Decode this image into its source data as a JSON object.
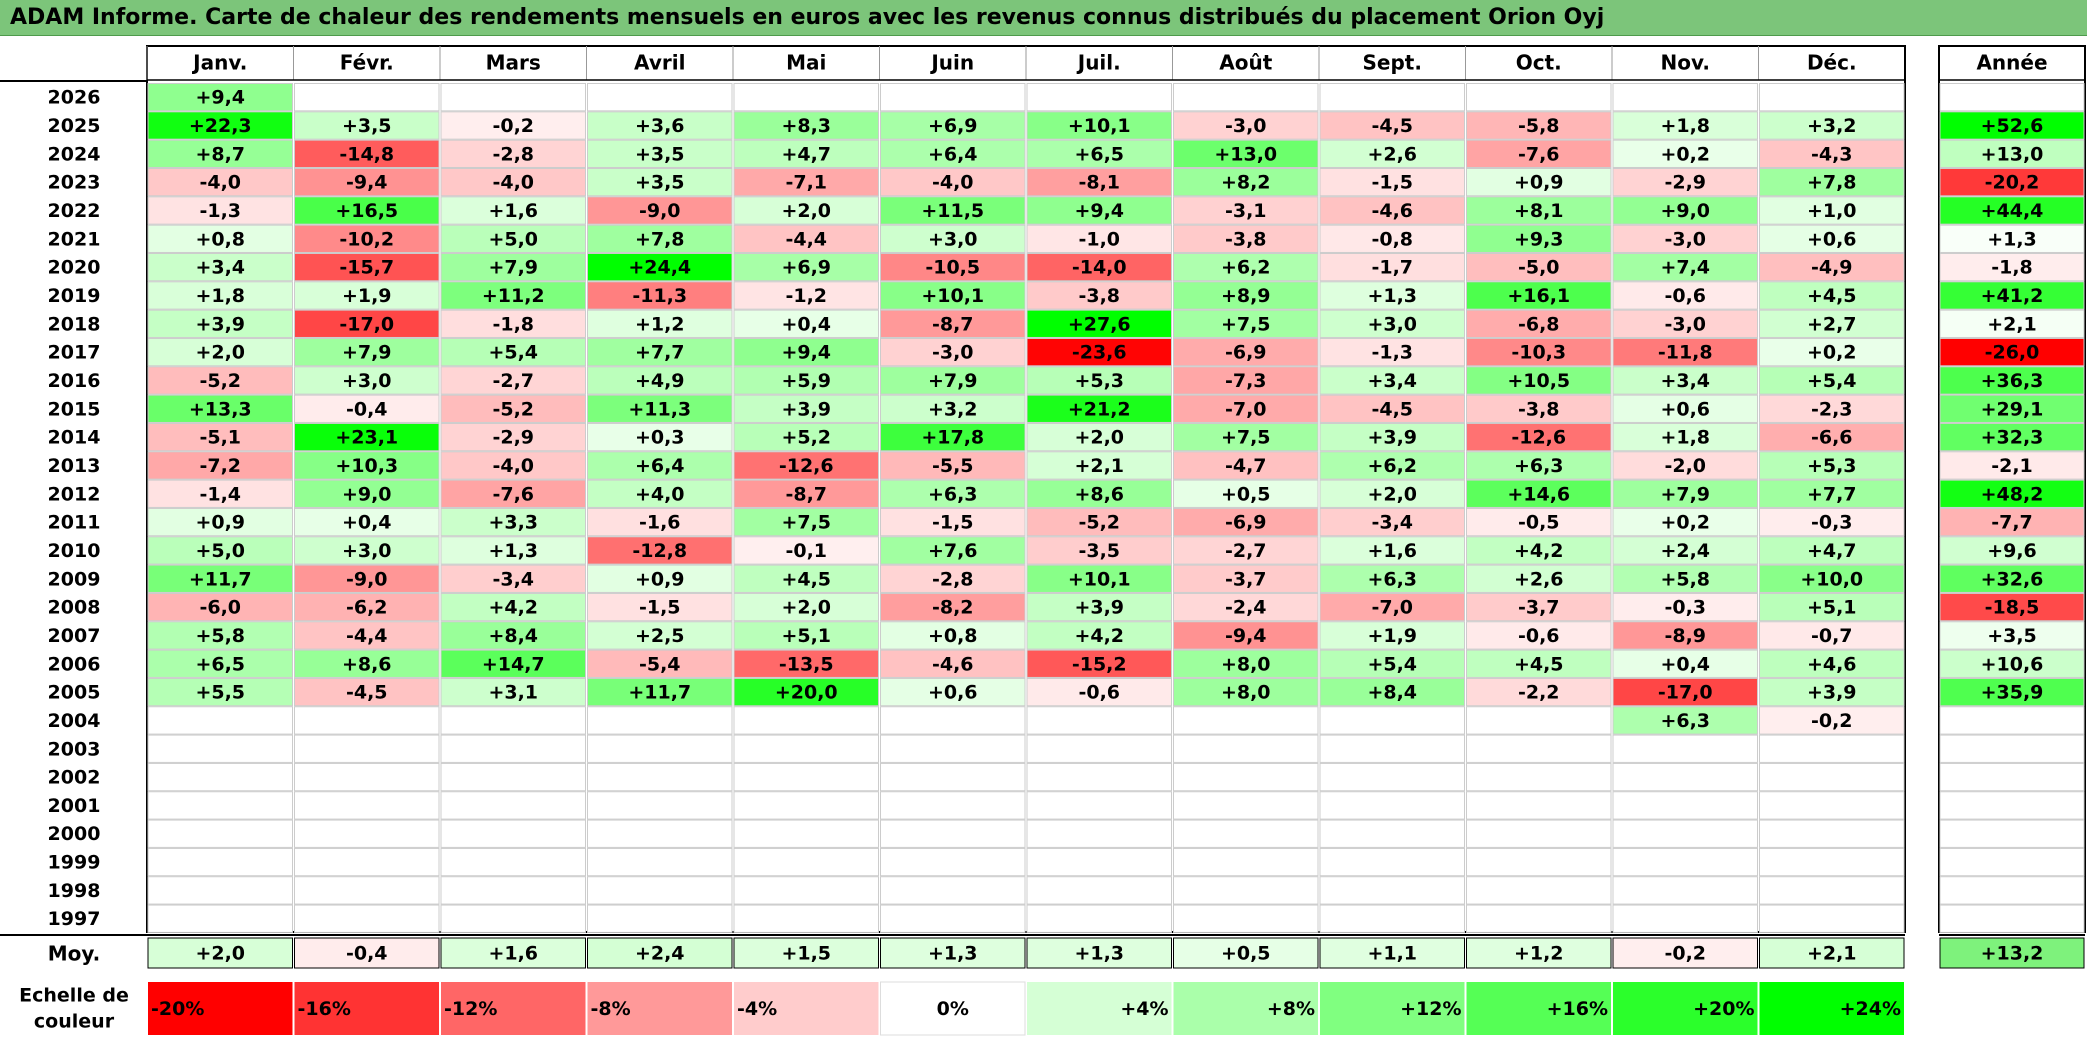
{
  "title": "ADAM Informe. Carte de chaleur des rendements mensuels en euros avec les revenus connus distribués du placement Orion Oyj",
  "chart_data": {
    "type": "heatmap",
    "title": "ADAM Informe. Carte de chaleur des rendements mensuels en euros avec les revenus connus distribués du placement Orion Oyj",
    "columns": [
      "Janv.",
      "Févr.",
      "Mars",
      "Avril",
      "Mai",
      "Juin",
      "Juil.",
      "Août",
      "Sept.",
      "Oct.",
      "Nov.",
      "Déc."
    ],
    "year_header": "Année",
    "rows": [
      {
        "year": "2026",
        "values": [
          "+9,4",
          "",
          "",
          "",
          "",
          "",
          "",
          "",
          "",
          "",
          "",
          ""
        ],
        "annual": ""
      },
      {
        "year": "2025",
        "values": [
          "+22,3",
          "+3,5",
          "-0,2",
          "+3,6",
          "+8,3",
          "+6,9",
          "+10,1",
          "-3,0",
          "-4,5",
          "-5,8",
          "+1,8",
          "+3,2"
        ],
        "annual": "+52,6"
      },
      {
        "year": "2024",
        "values": [
          "+8,7",
          "-14,8",
          "-2,8",
          "+3,5",
          "+4,7",
          "+6,4",
          "+6,5",
          "+13,0",
          "+2,6",
          "-7,6",
          "+0,2",
          "-4,3"
        ],
        "annual": "+13,0"
      },
      {
        "year": "2023",
        "values": [
          "-4,0",
          "-9,4",
          "-4,0",
          "+3,5",
          "-7,1",
          "-4,0",
          "-8,1",
          "+8,2",
          "-1,5",
          "+0,9",
          "-2,9",
          "+7,8"
        ],
        "annual": "-20,2"
      },
      {
        "year": "2022",
        "values": [
          "-1,3",
          "+16,5",
          "+1,6",
          "-9,0",
          "+2,0",
          "+11,5",
          "+9,4",
          "-3,1",
          "-4,6",
          "+8,1",
          "+9,0",
          "+1,0"
        ],
        "annual": "+44,4"
      },
      {
        "year": "2021",
        "values": [
          "+0,8",
          "-10,2",
          "+5,0",
          "+7,8",
          "-4,4",
          "+3,0",
          "-1,0",
          "-3,8",
          "-0,8",
          "+9,3",
          "-3,0",
          "+0,6"
        ],
        "annual": "+1,3"
      },
      {
        "year": "2020",
        "values": [
          "+3,4",
          "-15,7",
          "+7,9",
          "+24,4",
          "+6,9",
          "-10,5",
          "-14,0",
          "+6,2",
          "-1,7",
          "-5,0",
          "+7,4",
          "-4,9"
        ],
        "annual": "-1,8"
      },
      {
        "year": "2019",
        "values": [
          "+1,8",
          "+1,9",
          "+11,2",
          "-11,3",
          "-1,2",
          "+10,1",
          "-3,8",
          "+8,9",
          "+1,3",
          "+16,1",
          "-0,6",
          "+4,5"
        ],
        "annual": "+41,2"
      },
      {
        "year": "2018",
        "values": [
          "+3,9",
          "-17,0",
          "-1,8",
          "+1,2",
          "+0,4",
          "-8,7",
          "+27,6",
          "+7,5",
          "+3,0",
          "-6,8",
          "-3,0",
          "+2,7"
        ],
        "annual": "+2,1"
      },
      {
        "year": "2017",
        "values": [
          "+2,0",
          "+7,9",
          "+5,4",
          "+7,7",
          "+9,4",
          "-3,0",
          "-23,6",
          "-6,9",
          "-1,3",
          "-10,3",
          "-11,8",
          "+0,2"
        ],
        "annual": "-26,0"
      },
      {
        "year": "2016",
        "values": [
          "-5,2",
          "+3,0",
          "-2,7",
          "+4,9",
          "+5,9",
          "+7,9",
          "+5,3",
          "-7,3",
          "+3,4",
          "+10,5",
          "+3,4",
          "+5,4"
        ],
        "annual": "+36,3"
      },
      {
        "year": "2015",
        "values": [
          "+13,3",
          "-0,4",
          "-5,2",
          "+11,3",
          "+3,9",
          "+3,2",
          "+21,2",
          "-7,0",
          "-4,5",
          "-3,8",
          "+0,6",
          "-2,3"
        ],
        "annual": "+29,1"
      },
      {
        "year": "2014",
        "values": [
          "-5,1",
          "+23,1",
          "-2,9",
          "+0,3",
          "+5,2",
          "+17,8",
          "+2,0",
          "+7,5",
          "+3,9",
          "-12,6",
          "+1,8",
          "-6,6"
        ],
        "annual": "+32,3"
      },
      {
        "year": "2013",
        "values": [
          "-7,2",
          "+10,3",
          "-4,0",
          "+6,4",
          "-12,6",
          "-5,5",
          "+2,1",
          "-4,7",
          "+6,2",
          "+6,3",
          "-2,0",
          "+5,3"
        ],
        "annual": "-2,1"
      },
      {
        "year": "2012",
        "values": [
          "-1,4",
          "+9,0",
          "-7,6",
          "+4,0",
          "-8,7",
          "+6,3",
          "+8,6",
          "+0,5",
          "+2,0",
          "+14,6",
          "+7,9",
          "+7,7"
        ],
        "annual": "+48,2"
      },
      {
        "year": "2011",
        "values": [
          "+0,9",
          "+0,4",
          "+3,3",
          "-1,6",
          "+7,5",
          "-1,5",
          "-5,2",
          "-6,9",
          "-3,4",
          "-0,5",
          "+0,2",
          "-0,3"
        ],
        "annual": "-7,7"
      },
      {
        "year": "2010",
        "values": [
          "+5,0",
          "+3,0",
          "+1,3",
          "-12,8",
          "-0,1",
          "+7,6",
          "-3,5",
          "-2,7",
          "+1,6",
          "+4,2",
          "+2,4",
          "+4,7"
        ],
        "annual": "+9,6"
      },
      {
        "year": "2009",
        "values": [
          "+11,7",
          "-9,0",
          "-3,4",
          "+0,9",
          "+4,5",
          "-2,8",
          "+10,1",
          "-3,7",
          "+6,3",
          "+2,6",
          "+5,8",
          "+10,0"
        ],
        "annual": "+32,6"
      },
      {
        "year": "2008",
        "values": [
          "-6,0",
          "-6,2",
          "+4,2",
          "-1,5",
          "+2,0",
          "-8,2",
          "+3,9",
          "-2,4",
          "-7,0",
          "-3,7",
          "-0,3",
          "+5,1"
        ],
        "annual": "-18,5"
      },
      {
        "year": "2007",
        "values": [
          "+5,8",
          "-4,4",
          "+8,4",
          "+2,5",
          "+5,1",
          "+0,8",
          "+4,2",
          "-9,4",
          "+1,9",
          "-0,6",
          "-8,9",
          "-0,7"
        ],
        "annual": "+3,5"
      },
      {
        "year": "2006",
        "values": [
          "+6,5",
          "+8,6",
          "+14,7",
          "-5,4",
          "-13,5",
          "-4,6",
          "-15,2",
          "+8,0",
          "+5,4",
          "+4,5",
          "+0,4",
          "+4,6"
        ],
        "annual": "+10,6"
      },
      {
        "year": "2005",
        "values": [
          "+5,5",
          "-4,5",
          "+3,1",
          "+11,7",
          "+20,0",
          "+0,6",
          "-0,6",
          "+8,0",
          "+8,4",
          "-2,2",
          "-17,0",
          "+3,9"
        ],
        "annual": "+35,9"
      },
      {
        "year": "2004",
        "values": [
          "",
          "",
          "",
          "",
          "",
          "",
          "",
          "",
          "",
          "",
          "+6,3",
          "-0,2"
        ],
        "annual": ""
      },
      {
        "year": "2003",
        "values": [
          "",
          "",
          "",
          "",
          "",
          "",
          "",
          "",
          "",
          "",
          "",
          ""
        ],
        "annual": ""
      },
      {
        "year": "2002",
        "values": [
          "",
          "",
          "",
          "",
          "",
          "",
          "",
          "",
          "",
          "",
          "",
          ""
        ],
        "annual": ""
      },
      {
        "year": "2001",
        "values": [
          "",
          "",
          "",
          "",
          "",
          "",
          "",
          "",
          "",
          "",
          "",
          ""
        ],
        "annual": ""
      },
      {
        "year": "2000",
        "values": [
          "",
          "",
          "",
          "",
          "",
          "",
          "",
          "",
          "",
          "",
          "",
          ""
        ],
        "annual": ""
      },
      {
        "year": "1999",
        "values": [
          "",
          "",
          "",
          "",
          "",
          "",
          "",
          "",
          "",
          "",
          "",
          ""
        ],
        "annual": ""
      },
      {
        "year": "1998",
        "values": [
          "",
          "",
          "",
          "",
          "",
          "",
          "",
          "",
          "",
          "",
          "",
          ""
        ],
        "annual": ""
      },
      {
        "year": "1997",
        "values": [
          "",
          "",
          "",
          "",
          "",
          "",
          "",
          "",
          "",
          "",
          "",
          ""
        ],
        "annual": ""
      }
    ],
    "average": {
      "label": "Moy.",
      "values": [
        "+2,0",
        "-0,4",
        "+1,6",
        "+2,4",
        "+1,5",
        "+1,3",
        "+1,3",
        "+0,5",
        "+1,1",
        "+1,2",
        "-0,2",
        "+2,1"
      ],
      "annual": "+13,2"
    },
    "color_scale": {
      "label_line1": "Echelle de",
      "label_line2": "couleur",
      "stops": [
        "-20%",
        "-16%",
        "-12%",
        "-8%",
        "-4%",
        "0%",
        "+4%",
        "+8%",
        "+12%",
        "+16%",
        "+20%",
        "+24%"
      ],
      "stop_values": [
        -20,
        -16,
        -12,
        -8,
        -4,
        0,
        4,
        8,
        12,
        16,
        20,
        24
      ]
    },
    "colors": {
      "negative_max": "#ff0000",
      "neutral": "#ffffff",
      "positive_max": "#00ff00",
      "title_bar": "#7cc57a"
    }
  }
}
